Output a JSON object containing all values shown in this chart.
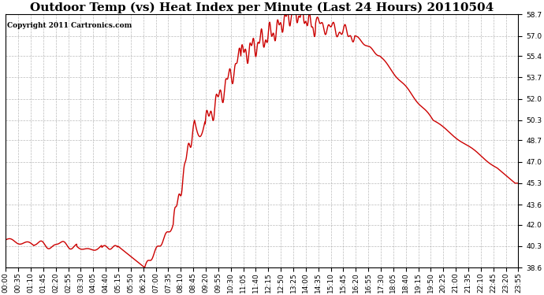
{
  "title": "Outdoor Temp (vs) Heat Index per Minute (Last 24 Hours) 20110504",
  "copyright_text": "Copyright 2011 Cartronics.com",
  "line_color": "#cc0000",
  "background_color": "#ffffff",
  "plot_bg_color": "#ffffff",
  "grid_color": "#aaaaaa",
  "yticks": [
    38.6,
    40.3,
    42.0,
    43.6,
    45.3,
    47.0,
    48.7,
    50.3,
    52.0,
    53.7,
    55.4,
    57.0,
    58.7
  ],
  "ymin": 38.6,
  "ymax": 58.7,
  "xtick_labels": [
    "00:00",
    "00:35",
    "01:10",
    "01:45",
    "02:20",
    "02:55",
    "03:30",
    "04:05",
    "04:40",
    "05:15",
    "05:50",
    "06:25",
    "07:00",
    "07:35",
    "08:10",
    "08:45",
    "09:20",
    "09:55",
    "10:30",
    "11:05",
    "11:40",
    "12:15",
    "12:50",
    "13:25",
    "14:00",
    "14:35",
    "15:10",
    "15:45",
    "16:20",
    "16:55",
    "17:30",
    "18:05",
    "18:40",
    "19:15",
    "19:50",
    "20:25",
    "21:00",
    "21:35",
    "22:10",
    "22:45",
    "23:20",
    "23:55"
  ],
  "title_fontsize": 11,
  "copyright_fontsize": 6.5,
  "tick_fontsize": 6.5,
  "line_width": 1.0
}
